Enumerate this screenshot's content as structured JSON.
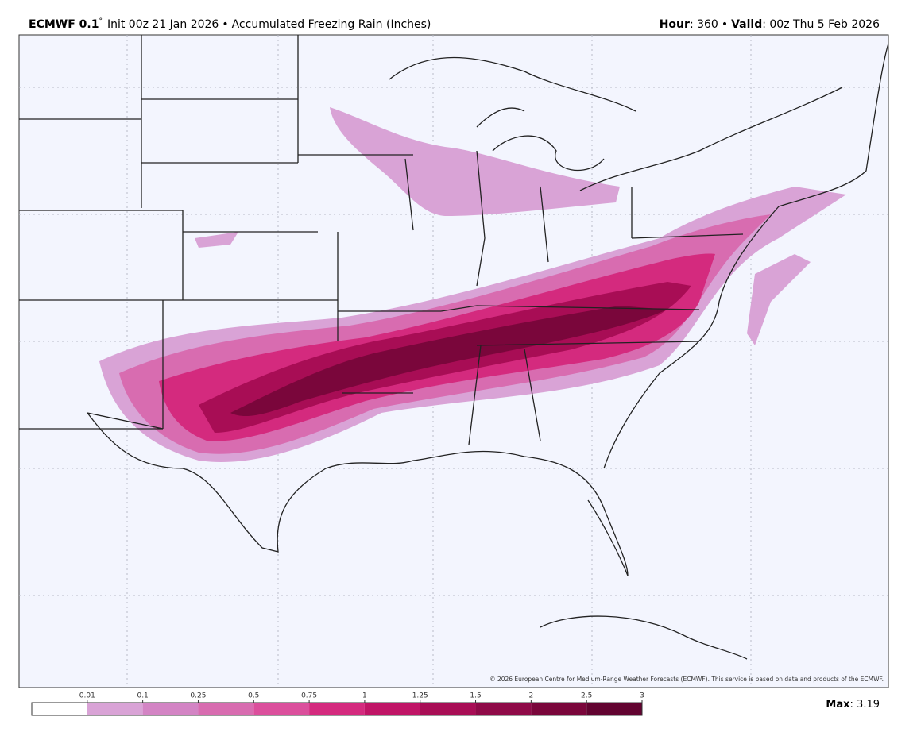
{
  "header": {
    "model": "ECMWF 0.1",
    "degree": "°",
    "init": "Init 00z 21 Jan 2026",
    "product": "Accumulated Freezing Rain (Inches)",
    "hour_label": "Hour",
    "hour": ": 360",
    "valid_label": "Valid",
    "valid": ": 00z Thu 5 Feb 2026"
  },
  "copyright": "© 2026 European Centre for Medium-Range Weather Forecasts (ECMWF). This service is based on data and products of the ECMWF.",
  "legend": {
    "levels": [
      0.01,
      0.1,
      0.25,
      0.5,
      0.75,
      1,
      1.25,
      1.5,
      2,
      2.5,
      3
    ],
    "colors": [
      "#ffffff",
      "#d9a3d6",
      "#d384c4",
      "#d86cb0",
      "#db4f9c",
      "#d42a7e",
      "#c01466",
      "#a80d55",
      "#8f0a48",
      "#7a063b",
      "#620330"
    ],
    "max_label": "Max",
    "max": ": 3.19"
  }
}
